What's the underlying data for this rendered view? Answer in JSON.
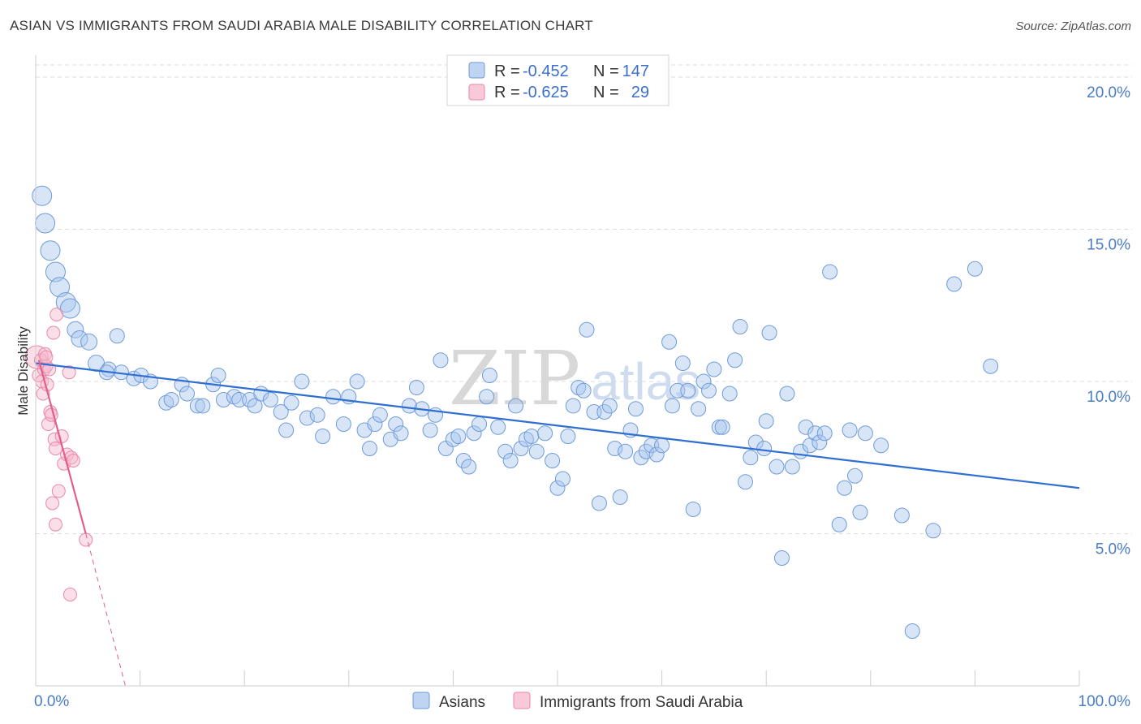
{
  "title": "ASIAN VS IMMIGRANTS FROM SAUDI ARABIA MALE DISABILITY CORRELATION CHART",
  "source": "Source: ZipAtlas.com",
  "watermark": {
    "main": "ZIP",
    "sub": "atlas"
  },
  "colors": {
    "asian_fill": "#a9c6ee",
    "asian_stroke": "#6f9bd8",
    "asian_line": "#2f6fd1",
    "saudi_fill": "#f6b8cc",
    "saudi_stroke": "#e98aa8",
    "saudi_line": "#e0608d",
    "grid": "#dddddd",
    "axis_text": "#4a7cc7"
  },
  "legend": {
    "rows": [
      {
        "r_label": "R =",
        "r_value": "-0.452",
        "n_label": "N =",
        "n_value": "147"
      },
      {
        "r_label": "R =",
        "r_value": "-0.625",
        "n_label": "N =",
        "n_value": "29"
      }
    ]
  },
  "chart_data": {
    "type": "scatter",
    "title": "ASIAN VS IMMIGRANTS FROM SAUDI ARABIA MALE DISABILITY CORRELATION CHART",
    "xlabel": "",
    "ylabel": "Male Disability",
    "x_tick_labels": [
      "0.0%",
      "100.0%"
    ],
    "y_tick_labels": [
      "5.0%",
      "10.0%",
      "15.0%",
      "20.0%"
    ],
    "y_ticks": [
      5,
      10,
      15,
      20
    ],
    "xlim": [
      0,
      100
    ],
    "ylim": [
      0,
      20.4
    ],
    "series": [
      {
        "name": "Asians",
        "R": -0.452,
        "N": 147,
        "trend": {
          "x": [
            0,
            100
          ],
          "y": [
            10.6,
            6.5
          ]
        },
        "points": [
          [
            0.6,
            16.1
          ],
          [
            0.9,
            15.2
          ],
          [
            1.4,
            14.3
          ],
          [
            1.9,
            13.6
          ],
          [
            2.3,
            13.1
          ],
          [
            2.9,
            12.6
          ],
          [
            3.3,
            12.4
          ],
          [
            3.8,
            11.7
          ],
          [
            4.2,
            11.4
          ],
          [
            5.1,
            11.3
          ],
          [
            5.8,
            10.6
          ],
          [
            7.0,
            10.4
          ],
          [
            8.2,
            10.3
          ],
          [
            9.4,
            10.1
          ],
          [
            7.8,
            11.5
          ],
          [
            6.8,
            10.3
          ],
          [
            10.1,
            10.2
          ],
          [
            11.0,
            10.0
          ],
          [
            12.5,
            9.3
          ],
          [
            13.0,
            9.4
          ],
          [
            14.0,
            9.9
          ],
          [
            14.5,
            9.6
          ],
          [
            15.5,
            9.2
          ],
          [
            16.0,
            9.2
          ],
          [
            17.0,
            9.9
          ],
          [
            17.5,
            10.2
          ],
          [
            18.0,
            9.4
          ],
          [
            19.0,
            9.5
          ],
          [
            19.5,
            9.4
          ],
          [
            20.5,
            9.4
          ],
          [
            21.0,
            9.2
          ],
          [
            21.6,
            9.6
          ],
          [
            22.5,
            9.4
          ],
          [
            23.5,
            9.0
          ],
          [
            24.0,
            8.4
          ],
          [
            24.5,
            9.3
          ],
          [
            25.5,
            10.0
          ],
          [
            26.0,
            8.8
          ],
          [
            27.0,
            8.9
          ],
          [
            27.5,
            8.2
          ],
          [
            28.5,
            9.5
          ],
          [
            29.5,
            8.6
          ],
          [
            30.0,
            9.5
          ],
          [
            30.8,
            10.0
          ],
          [
            31.5,
            8.4
          ],
          [
            32.0,
            7.8
          ],
          [
            32.5,
            8.6
          ],
          [
            33.0,
            8.9
          ],
          [
            34.0,
            8.1
          ],
          [
            34.5,
            8.6
          ],
          [
            35.0,
            8.3
          ],
          [
            35.8,
            9.2
          ],
          [
            36.5,
            9.8
          ],
          [
            37.0,
            9.1
          ],
          [
            37.8,
            8.4
          ],
          [
            38.3,
            8.9
          ],
          [
            38.8,
            10.7
          ],
          [
            39.3,
            7.8
          ],
          [
            40.0,
            8.1
          ],
          [
            40.5,
            8.2
          ],
          [
            41.0,
            7.4
          ],
          [
            41.5,
            7.2
          ],
          [
            42.0,
            8.3
          ],
          [
            42.5,
            8.6
          ],
          [
            43.2,
            9.5
          ],
          [
            43.5,
            10.2
          ],
          [
            44.3,
            8.5
          ],
          [
            45.0,
            7.7
          ],
          [
            45.5,
            7.4
          ],
          [
            46.0,
            9.2
          ],
          [
            46.5,
            7.8
          ],
          [
            47.0,
            8.1
          ],
          [
            47.5,
            8.2
          ],
          [
            48.0,
            7.7
          ],
          [
            48.8,
            8.3
          ],
          [
            49.5,
            7.4
          ],
          [
            50.0,
            6.5
          ],
          [
            50.5,
            6.8
          ],
          [
            51.0,
            8.2
          ],
          [
            51.5,
            9.2
          ],
          [
            52.0,
            9.8
          ],
          [
            52.5,
            9.7
          ],
          [
            52.8,
            11.7
          ],
          [
            53.5,
            9.0
          ],
          [
            54.0,
            6.0
          ],
          [
            54.5,
            9.0
          ],
          [
            55.0,
            9.2
          ],
          [
            55.5,
            7.8
          ],
          [
            56.0,
            6.2
          ],
          [
            56.5,
            7.7
          ],
          [
            57.0,
            8.4
          ],
          [
            57.5,
            9.1
          ],
          [
            58.0,
            7.5
          ],
          [
            58.5,
            7.7
          ],
          [
            59.0,
            7.9
          ],
          [
            59.5,
            7.6
          ],
          [
            60.0,
            7.9
          ],
          [
            60.7,
            11.3
          ],
          [
            61.0,
            9.2
          ],
          [
            61.5,
            9.7
          ],
          [
            62.0,
            10.6
          ],
          [
            62.5,
            9.7
          ],
          [
            63.0,
            5.8
          ],
          [
            63.5,
            9.1
          ],
          [
            64.0,
            10.0
          ],
          [
            64.5,
            9.7
          ],
          [
            65.0,
            10.4
          ],
          [
            65.5,
            8.5
          ],
          [
            65.8,
            8.5
          ],
          [
            66.5,
            9.6
          ],
          [
            67.0,
            10.7
          ],
          [
            67.5,
            11.8
          ],
          [
            68.0,
            6.7
          ],
          [
            68.5,
            7.5
          ],
          [
            69.0,
            8.0
          ],
          [
            69.8,
            7.8
          ],
          [
            70.0,
            8.7
          ],
          [
            70.3,
            11.6
          ],
          [
            71.0,
            7.2
          ],
          [
            71.5,
            4.2
          ],
          [
            72.0,
            9.6
          ],
          [
            72.5,
            7.2
          ],
          [
            73.3,
            7.7
          ],
          [
            73.8,
            8.5
          ],
          [
            74.2,
            7.9
          ],
          [
            74.7,
            8.3
          ],
          [
            75.1,
            8.0
          ],
          [
            75.6,
            8.3
          ],
          [
            76.1,
            13.6
          ],
          [
            77.0,
            5.3
          ],
          [
            77.5,
            6.5
          ],
          [
            78.0,
            8.4
          ],
          [
            78.5,
            6.9
          ],
          [
            79.0,
            5.7
          ],
          [
            79.5,
            8.3
          ],
          [
            81.0,
            7.9
          ],
          [
            83.0,
            5.6
          ],
          [
            84.0,
            1.8
          ],
          [
            86.0,
            5.1
          ],
          [
            88.0,
            13.2
          ],
          [
            90.0,
            13.7
          ],
          [
            91.5,
            10.5
          ]
        ]
      },
      {
        "name": "Immigrants from Saudi Arabia",
        "R": -0.625,
        "N": 29,
        "trend": {
          "x": [
            0.3,
            4.8
          ],
          "y": [
            10.7,
            5.0
          ]
        },
        "trend_extension": {
          "x": [
            4.8,
            9.5
          ],
          "y": [
            5.0,
            -1.2
          ]
        },
        "points": [
          [
            0.1,
            10.8
          ],
          [
            0.3,
            10.2
          ],
          [
            0.5,
            10.7
          ],
          [
            0.6,
            10.0
          ],
          [
            0.7,
            9.6
          ],
          [
            0.8,
            10.4
          ],
          [
            0.9,
            10.9
          ],
          [
            1.0,
            10.5
          ],
          [
            1.1,
            9.9
          ],
          [
            1.2,
            8.6
          ],
          [
            1.3,
            10.4
          ],
          [
            1.4,
            9.0
          ],
          [
            1.5,
            8.9
          ],
          [
            1.6,
            6.0
          ],
          [
            1.7,
            11.6
          ],
          [
            1.8,
            8.1
          ],
          [
            1.9,
            7.8
          ],
          [
            2.0,
            12.2
          ],
          [
            2.2,
            6.4
          ],
          [
            2.5,
            8.2
          ],
          [
            2.7,
            7.3
          ],
          [
            3.0,
            7.6
          ],
          [
            3.2,
            10.3
          ],
          [
            3.4,
            7.5
          ],
          [
            3.6,
            7.4
          ],
          [
            1.9,
            5.3
          ],
          [
            3.3,
            3.0
          ],
          [
            4.8,
            4.8
          ],
          [
            1.0,
            10.8
          ]
        ]
      }
    ]
  },
  "bottom_legend": [
    {
      "label": "Asians"
    },
    {
      "label": "Immigrants from Saudi Arabia"
    }
  ]
}
